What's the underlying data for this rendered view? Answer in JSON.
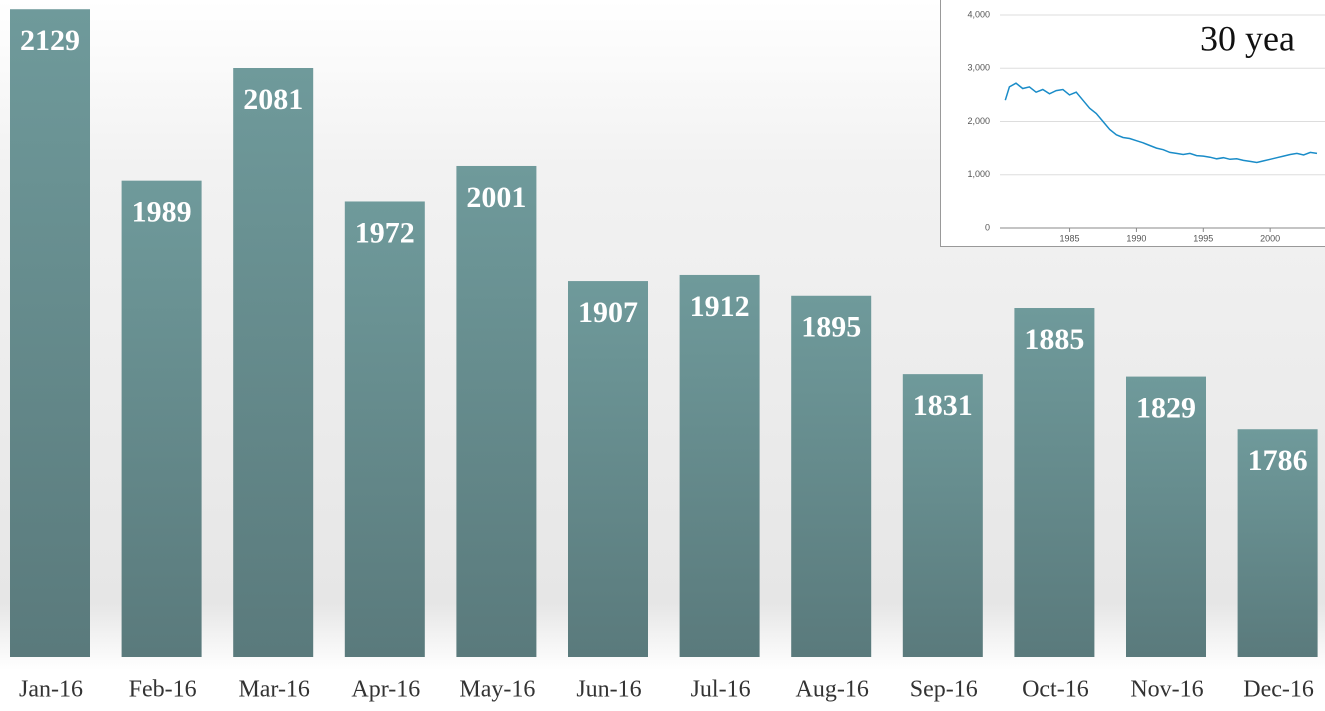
{
  "chart_data": [
    {
      "type": "bar",
      "categories": [
        "Jan-16",
        "Feb-16",
        "Mar-16",
        "Apr-16",
        "May-16",
        "Jun-16",
        "Jul-16",
        "Aug-16",
        "Sep-16",
        "Oct-16",
        "Nov-16",
        "Dec-16"
      ],
      "values": [
        2129,
        1989,
        2081,
        1972,
        2001,
        1907,
        1912,
        1895,
        1831,
        1885,
        1829,
        1786
      ],
      "color": "#6a9293",
      "ylim": [
        1600,
        2130
      ]
    },
    {
      "type": "line",
      "annotation": "30 yea",
      "x": [
        1980.2,
        1980.5,
        1981,
        1981.5,
        1982,
        1982.5,
        1983,
        1983.5,
        1984,
        1984.5,
        1985,
        1985.5,
        1986,
        1986.5,
        1987,
        1987.5,
        1988,
        1988.5,
        1989,
        1989.5,
        1990,
        1990.5,
        1991,
        1991.5,
        1992,
        1992.5,
        1993,
        1993.5,
        1994,
        1994.5,
        1995,
        1995.5,
        1996,
        1996.5,
        1997,
        1997.5,
        1998,
        1998.5,
        1999,
        1999.5,
        2000,
        2000.5,
        2001,
        2001.5,
        2002,
        2002.5,
        2003,
        2003.5
      ],
      "values": [
        2400,
        2650,
        2720,
        2620,
        2650,
        2550,
        2600,
        2520,
        2580,
        2600,
        2500,
        2550,
        2400,
        2250,
        2150,
        2000,
        1850,
        1750,
        1700,
        1680,
        1640,
        1600,
        1550,
        1500,
        1470,
        1420,
        1400,
        1380,
        1400,
        1360,
        1350,
        1330,
        1300,
        1320,
        1290,
        1300,
        1270,
        1250,
        1230,
        1260,
        1290,
        1320,
        1350,
        1380,
        1400,
        1370,
        1420,
        1400
      ],
      "color": "#1a8cc8",
      "xlim": [
        1979.8,
        2004.1
      ],
      "ylim": [
        0,
        4000
      ],
      "xticks": [
        1985,
        1990,
        1995,
        2000
      ],
      "yticks": [
        0,
        {
          "value": 1000,
          "label": "1,000"
        },
        {
          "value": 2000,
          "label": "2,000"
        },
        {
          "value": 3000,
          "label": "3,000"
        },
        {
          "value": 4000,
          "label": "4,000"
        }
      ],
      "grid": true
    }
  ]
}
